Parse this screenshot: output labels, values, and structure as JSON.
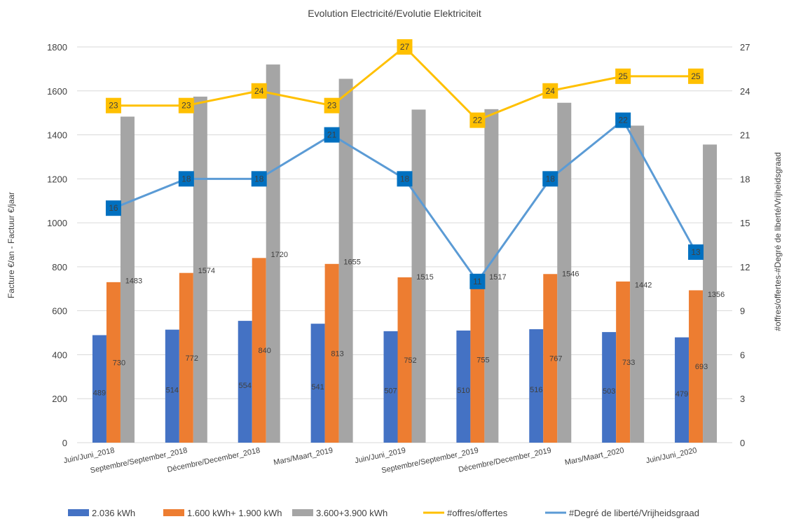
{
  "chart_data": {
    "type": "bar",
    "title": "Evolution Electricité/Evolutie Elektriciteit",
    "ylabel": "Facture €/an - Factuur €/jaar",
    "y2label": "#offres/offertes-#Degré de liberté/Vrijheidsgraad",
    "ylim": [
      0,
      1800
    ],
    "y2lim": [
      0,
      27
    ],
    "yticks": [
      "0",
      "200",
      "400",
      "600",
      "800",
      "1000",
      "1200",
      "1400",
      "1600",
      "1800"
    ],
    "y2ticks": [
      "0",
      "3",
      "6",
      "9",
      "12",
      "15",
      "18",
      "21",
      "24",
      "27"
    ],
    "grid": true,
    "legend_position": "bottom",
    "categories": [
      "Juin/Juni_2018",
      "Septembre/September_2018",
      "Décembre/December_2018",
      "Mars/Maart_2019",
      "Juin/Juni_2019",
      "Septembre/September_2019",
      "Décembre/December_2019",
      "Mars/Maart_2020",
      "Juin/Juni_2020"
    ],
    "series": [
      {
        "name": "2.036 kWh",
        "type": "bar",
        "axis": "left",
        "color": "#4472C4",
        "values": [
          489,
          514,
          554,
          541,
          507,
          510,
          516,
          503,
          479
        ]
      },
      {
        "name": "1.600 kWh+ 1.900 kWh",
        "type": "bar",
        "axis": "left",
        "color": "#ED7D31",
        "values": [
          730,
          772,
          840,
          813,
          752,
          755,
          767,
          733,
          693
        ]
      },
      {
        "name": "3.600+3.900 kWh",
        "type": "bar",
        "axis": "left",
        "color": "#A5A5A5",
        "values": [
          1483,
          1574,
          1720,
          1655,
          1515,
          1517,
          1546,
          1442,
          1356
        ]
      },
      {
        "name": "#offres/offertes",
        "type": "line",
        "axis": "right",
        "color": "#FFC000",
        "values": [
          23,
          23,
          24,
          23,
          27,
          22,
          24,
          25,
          25
        ]
      },
      {
        "name": "#Degré de liberté/Vrijheidsgraad",
        "type": "line",
        "axis": "right",
        "color": "#5B9BD5",
        "marker_color": "#0070C0",
        "values": [
          16,
          18,
          18,
          21,
          18,
          11,
          18,
          22,
          13
        ]
      }
    ]
  }
}
